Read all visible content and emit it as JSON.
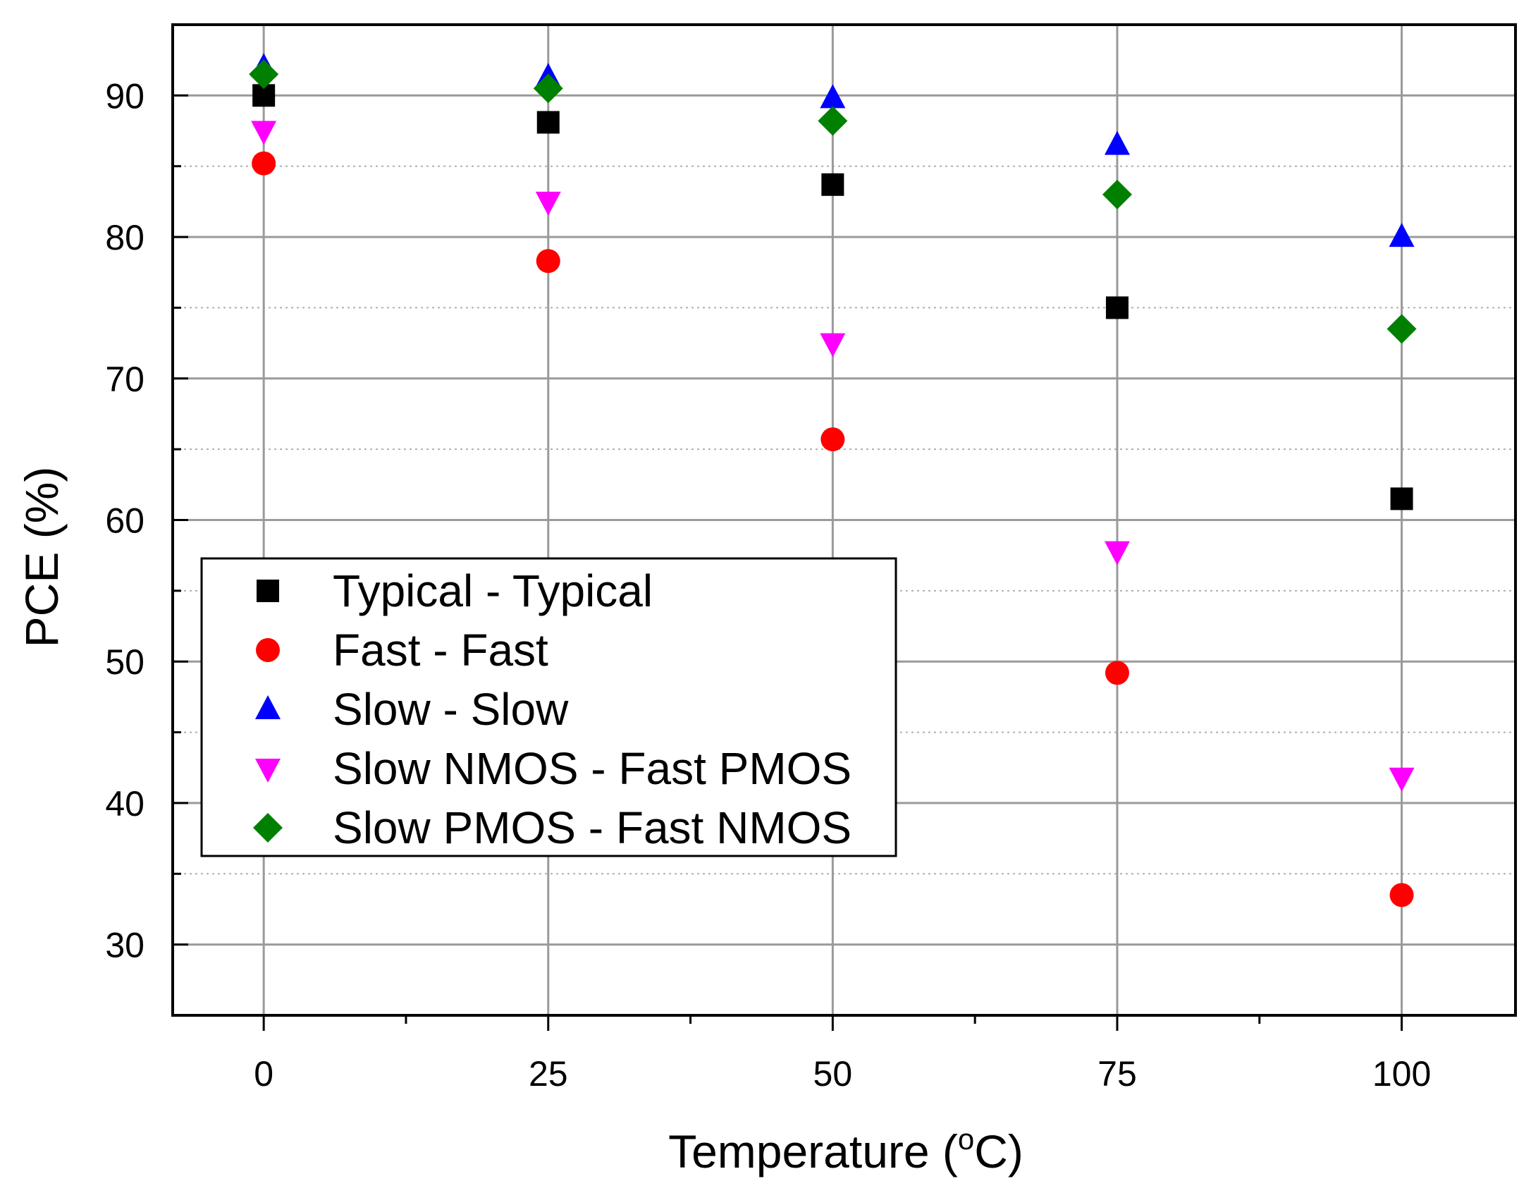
{
  "chart_data": {
    "type": "scatter",
    "title": "",
    "xlabel_main": "Temperature (",
    "xlabel_sup": "o",
    "xlabel_end": "C)",
    "ylabel": "PCE (%)",
    "xlim": [
      -8,
      110
    ],
    "ylim": [
      25,
      95
    ],
    "x_ticks": [
      0,
      25,
      50,
      75,
      100
    ],
    "y_ticks": [
      30,
      40,
      50,
      60,
      70,
      80,
      90
    ],
    "x_tick_labels": [
      "0",
      "25",
      "50",
      "75",
      "100"
    ],
    "y_tick_labels": [
      "30",
      "40",
      "50",
      "60",
      "70",
      "80",
      "90"
    ],
    "x": [
      0,
      25,
      50,
      75,
      100
    ],
    "series": [
      {
        "name": "Typical - Typical",
        "marker": "square",
        "color": "#000000",
        "values": [
          90.0,
          88.1,
          83.7,
          75.0,
          61.5
        ]
      },
      {
        "name": "Fast - Fast",
        "marker": "circle",
        "color": "#ff0000",
        "values": [
          85.2,
          78.3,
          65.7,
          49.2,
          33.5
        ]
      },
      {
        "name": "Slow - Slow",
        "marker": "triangle-up",
        "color": "#0000ff",
        "values": [
          92.0,
          91.3,
          89.8,
          86.5,
          80.0
        ]
      },
      {
        "name": "Slow NMOS - Fast PMOS",
        "marker": "triangle-down",
        "color": "#ff00ff",
        "values": [
          87.5,
          82.5,
          72.5,
          57.8,
          41.8
        ]
      },
      {
        "name": "Slow PMOS - Fast NMOS",
        "marker": "diamond",
        "color": "#008000",
        "values": [
          91.5,
          90.5,
          88.2,
          83.0,
          73.5
        ]
      }
    ],
    "legend_position": "center-left",
    "grid": true
  }
}
